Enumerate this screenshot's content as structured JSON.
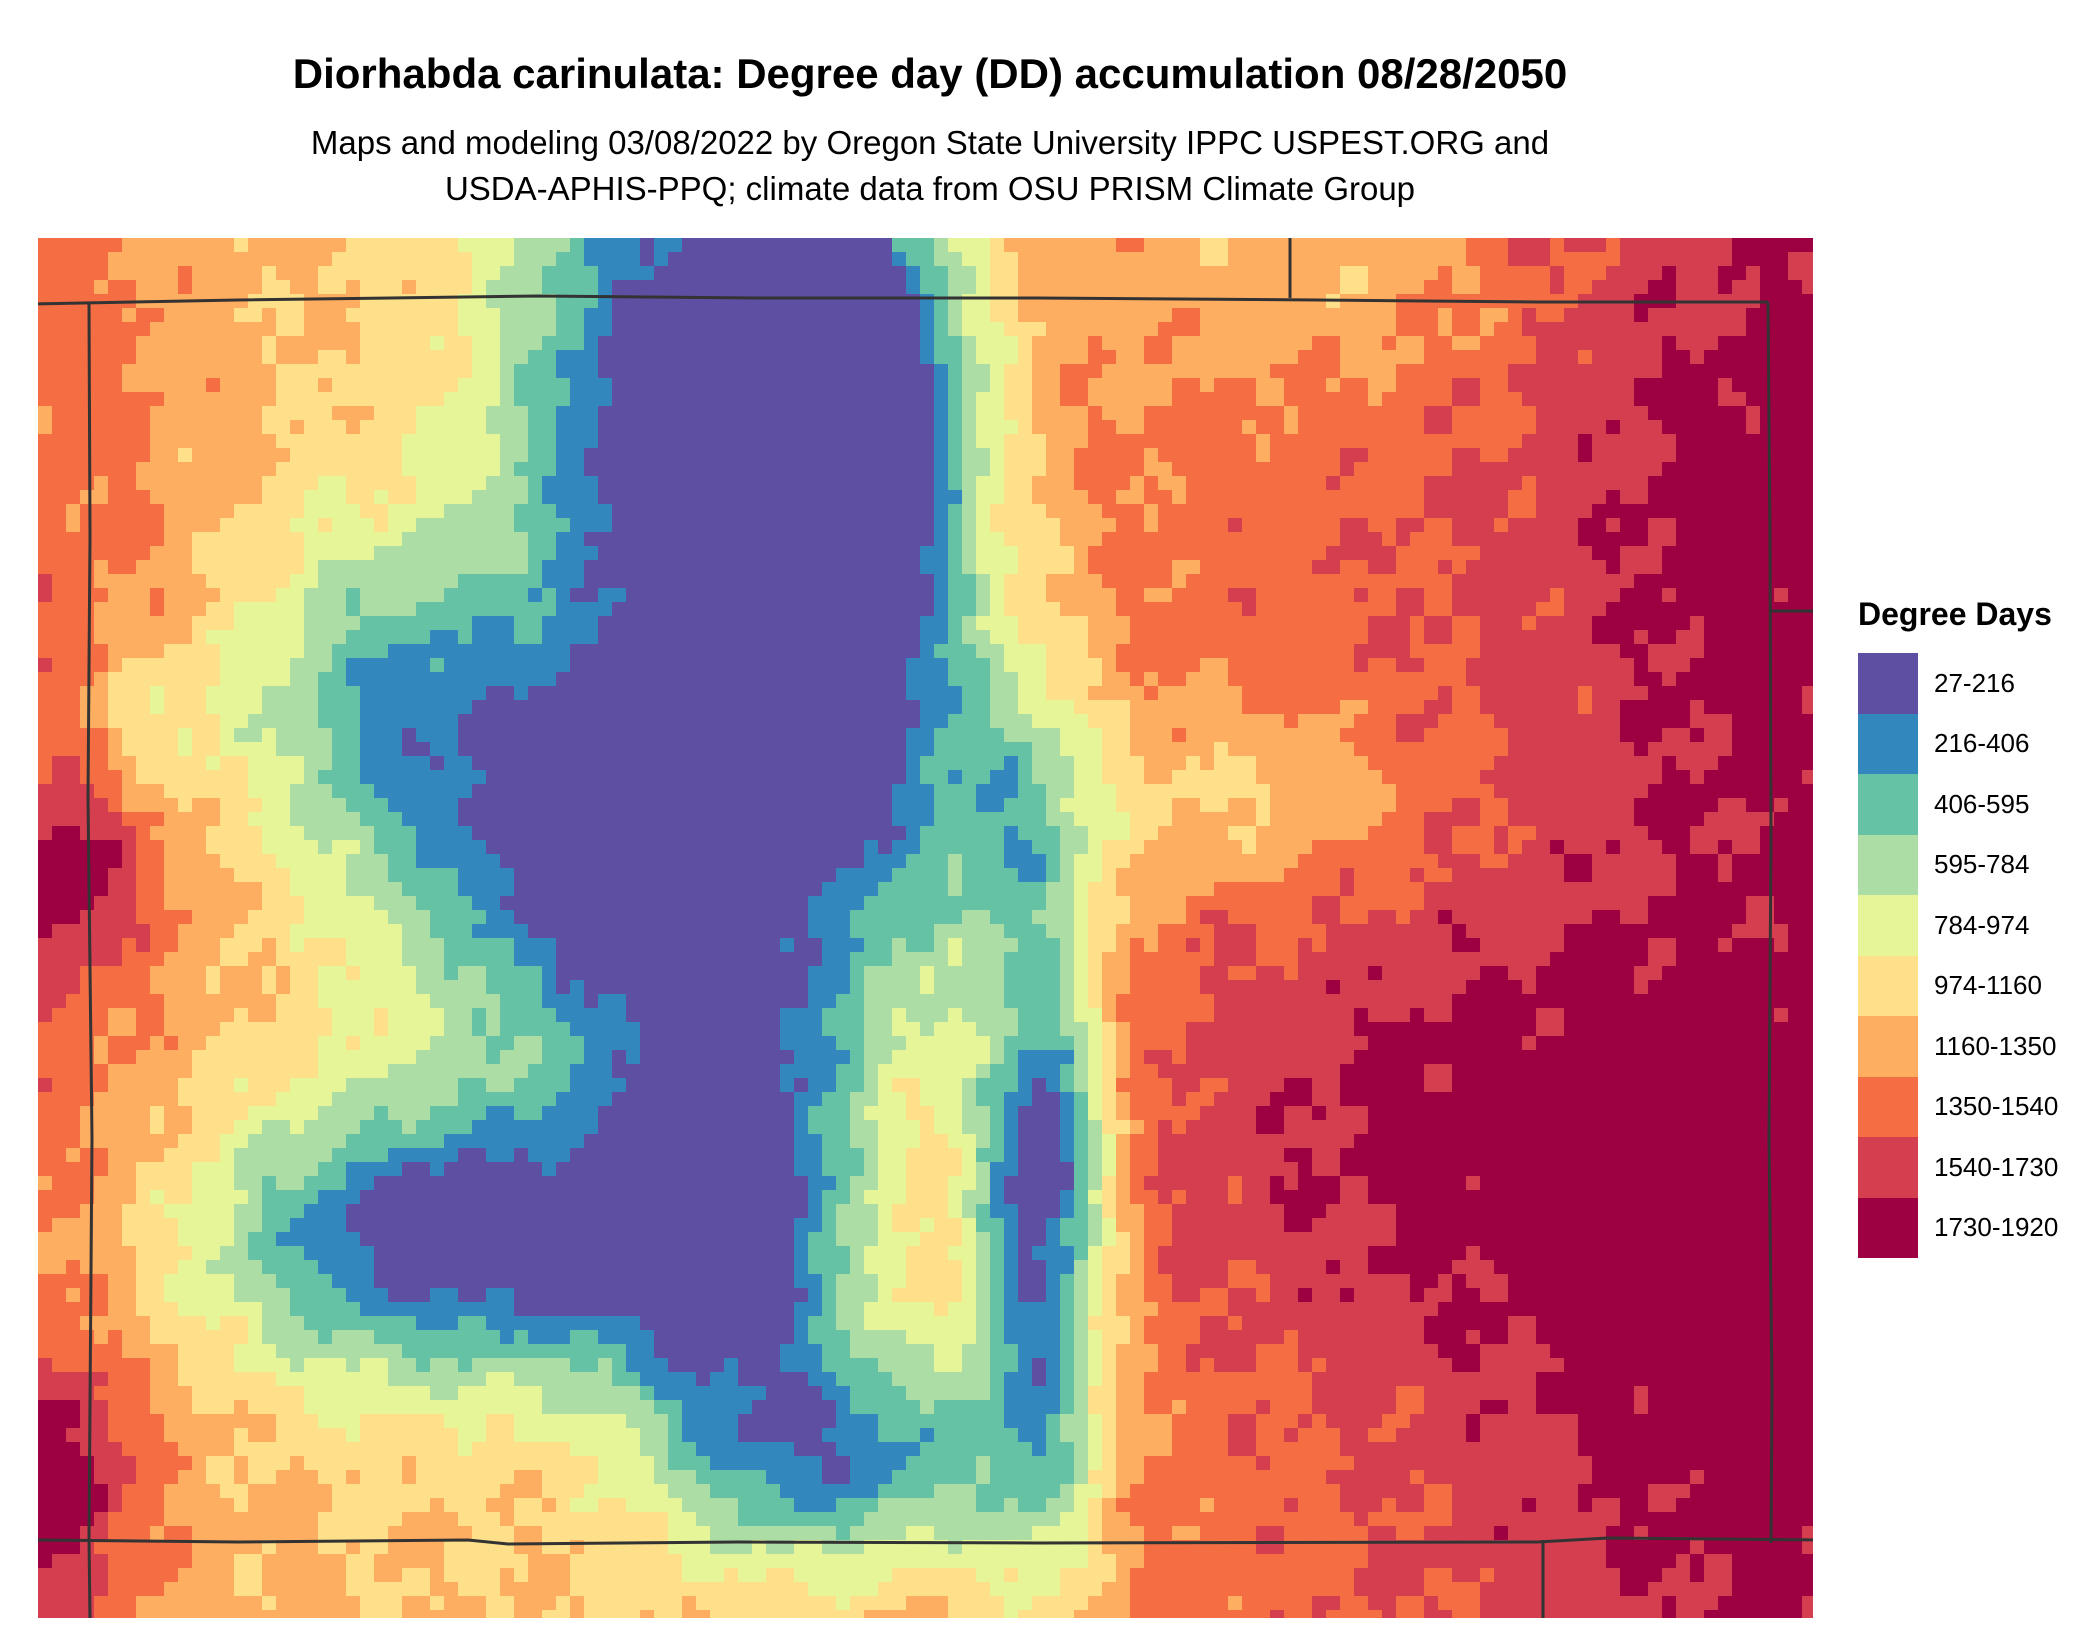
{
  "title": "Diorhabda carinulata: Degree day (DD) accumulation 08/28/2050",
  "subtitle": [
    "Maps and modeling 03/08/2022 by Oregon State University IPPC USPEST.ORG and",
    "USDA-APHIS-PPQ; climate data from OSU PRISM Climate Group"
  ],
  "legend": {
    "title": "Degree Days",
    "classes": [
      {
        "label": "27-216",
        "color": "#5e4fa2"
      },
      {
        "label": "216-406",
        "color": "#3288bd"
      },
      {
        "label": "406-595",
        "color": "#66c2a5"
      },
      {
        "label": "595-784",
        "color": "#abdda4"
      },
      {
        "label": "784-974",
        "color": "#e6f598"
      },
      {
        "label": "974-1160",
        "color": "#fee08b"
      },
      {
        "label": "1160-1350",
        "color": "#fdae61"
      },
      {
        "label": "1350-1540",
        "color": "#f46d43"
      },
      {
        "label": "1540-1730",
        "color": "#d53e4f"
      },
      {
        "label": "1730-1920",
        "color": "#9e0142"
      }
    ]
  }
}
